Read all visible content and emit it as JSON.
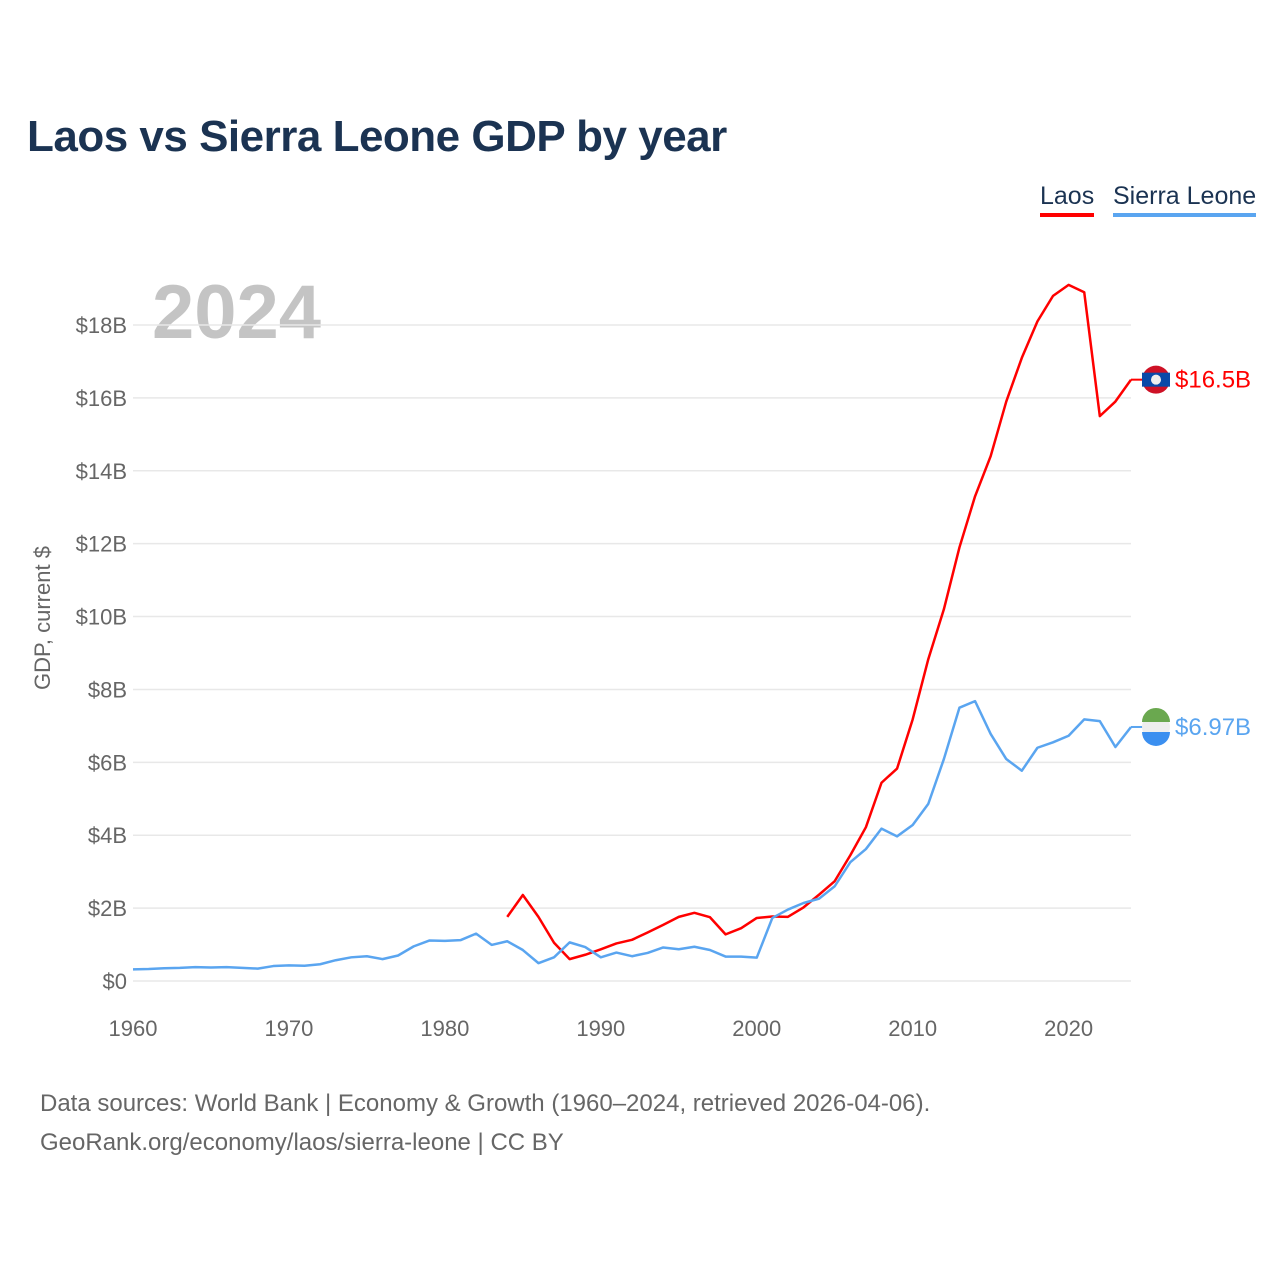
{
  "chart_data": {
    "type": "line",
    "title": "Laos vs Sierra Leone GDP by year",
    "ylabel": "GDP, current $",
    "xlabel": "",
    "year_watermark": "2024",
    "ylim": [
      0,
      18
    ],
    "xlim": [
      1960,
      2024
    ],
    "yticks": [
      {
        "v": 0,
        "label": "$0"
      },
      {
        "v": 2,
        "label": "$2B"
      },
      {
        "v": 4,
        "label": "$4B"
      },
      {
        "v": 6,
        "label": "$6B"
      },
      {
        "v": 8,
        "label": "$8B"
      },
      {
        "v": 10,
        "label": "$10B"
      },
      {
        "v": 12,
        "label": "$12B"
      },
      {
        "v": 14,
        "label": "$14B"
      },
      {
        "v": 16,
        "label": "$16B"
      },
      {
        "v": 18,
        "label": "$18B"
      }
    ],
    "xticks": [
      1960,
      1970,
      1980,
      1990,
      2000,
      2010,
      2020
    ],
    "grid": true,
    "legend_position": "top-right",
    "series": [
      {
        "name": "Laos",
        "color": "#ff0000",
        "start": 1984,
        "end_label": "$16.5B",
        "flag": "laos-flag",
        "values": [
          1.76,
          2.36,
          1.76,
          1.05,
          0.6,
          0.72,
          0.87,
          1.03,
          1.13,
          1.33,
          1.54,
          1.76,
          1.87,
          1.75,
          1.28,
          1.45,
          1.73,
          1.77,
          1.76,
          2.02,
          2.37,
          2.74,
          3.45,
          4.22,
          5.44,
          5.83,
          7.18,
          8.83,
          10.2,
          11.9,
          13.3,
          14.4,
          15.9,
          17.1,
          18.1,
          18.8,
          19.1,
          18.9,
          15.5,
          15.9,
          16.5
        ]
      },
      {
        "name": "Sierra Leone",
        "color": "#5aa5f0",
        "start": 1960,
        "end_label": "$6.97B",
        "flag": "sierra-leone-flag",
        "values": [
          0.32,
          0.33,
          0.35,
          0.36,
          0.38,
          0.37,
          0.38,
          0.36,
          0.34,
          0.41,
          0.43,
          0.42,
          0.46,
          0.57,
          0.65,
          0.68,
          0.6,
          0.7,
          0.95,
          1.11,
          1.1,
          1.12,
          1.3,
          0.99,
          1.09,
          0.85,
          0.49,
          0.65,
          1.06,
          0.93,
          0.65,
          0.78,
          0.68,
          0.77,
          0.92,
          0.87,
          0.94,
          0.85,
          0.67,
          0.67,
          0.64,
          1.73,
          1.96,
          2.14,
          2.26,
          2.6,
          3.26,
          3.62,
          4.18,
          3.97,
          4.28,
          4.86,
          6.09,
          7.5,
          7.68,
          6.78,
          6.09,
          5.77,
          6.4,
          6.55,
          6.73,
          7.18,
          7.13,
          6.42,
          6.97
        ]
      }
    ]
  },
  "footer": {
    "line1": "Data sources: World Bank | Economy & Growth (1960–2024, retrieved 2026-04-06).",
    "line2": "GeoRank.org/economy/laos/sierra-leone | CC BY"
  }
}
